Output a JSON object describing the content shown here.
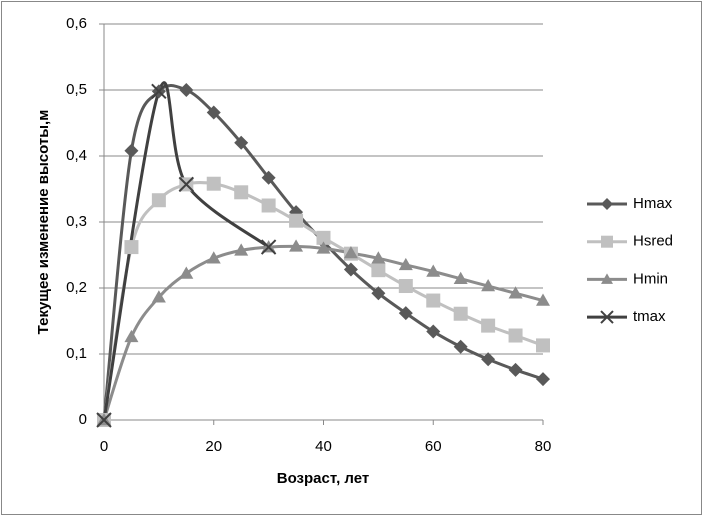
{
  "chart_data": {
    "type": "line",
    "smooth": true,
    "x_label": "Возраст, лет",
    "y_label": "Текущее изменение высоты,м",
    "xlim": [
      0,
      80
    ],
    "xticks": [
      0,
      20,
      40,
      60,
      80
    ],
    "ylim": [
      0,
      0.6
    ],
    "yticks": [
      0,
      {
        "value": 0.1,
        "label": "0,1"
      },
      {
        "value": 0.2,
        "label": "0,2"
      },
      {
        "value": 0.3,
        "label": "0,3"
      },
      {
        "value": 0.4,
        "label": "0,4"
      },
      {
        "value": 0.5,
        "label": "0,5"
      },
      {
        "value": 0.6,
        "label": "0,6"
      }
    ],
    "grid": true,
    "legend": "right",
    "series": [
      {
        "name": "Hmax",
        "color": "#595959",
        "marker": "diamond",
        "x": [
          0,
          5,
          10,
          15,
          20,
          25,
          30,
          35,
          40,
          45,
          50,
          55,
          60,
          65,
          70,
          75,
          80
        ],
        "values": [
          0,
          0.408,
          0.498,
          0.5,
          0.466,
          0.42,
          0.367,
          0.315,
          0.27,
          0.228,
          0.192,
          0.162,
          0.134,
          0.111,
          0.092,
          0.076,
          0.062
        ]
      },
      {
        "name": "Hsred",
        "color": "#c0c0c0",
        "marker": "square",
        "x": [
          0,
          5,
          10,
          15,
          20,
          25,
          30,
          35,
          40,
          45,
          50,
          55,
          60,
          65,
          70,
          75,
          80
        ],
        "values": [
          0,
          0.262,
          0.333,
          0.357,
          0.358,
          0.345,
          0.325,
          0.302,
          0.276,
          0.252,
          0.227,
          0.203,
          0.181,
          0.161,
          0.143,
          0.128,
          0.113
        ]
      },
      {
        "name": "Hmin",
        "color": "#8c8c8c",
        "marker": "triangle",
        "x": [
          0,
          5,
          10,
          15,
          20,
          25,
          30,
          35,
          40,
          45,
          50,
          55,
          60,
          65,
          70,
          75,
          80
        ],
        "values": [
          0,
          0.126,
          0.186,
          0.222,
          0.245,
          0.257,
          0.262,
          0.263,
          0.26,
          0.253,
          0.245,
          0.235,
          0.225,
          0.214,
          0.203,
          0.192,
          0.181
        ]
      },
      {
        "name": "tmax",
        "color": "#404040",
        "marker": "cross",
        "x": [
          0,
          10,
          15,
          30
        ],
        "values": [
          0,
          0.498,
          0.357,
          0.262
        ]
      }
    ]
  }
}
